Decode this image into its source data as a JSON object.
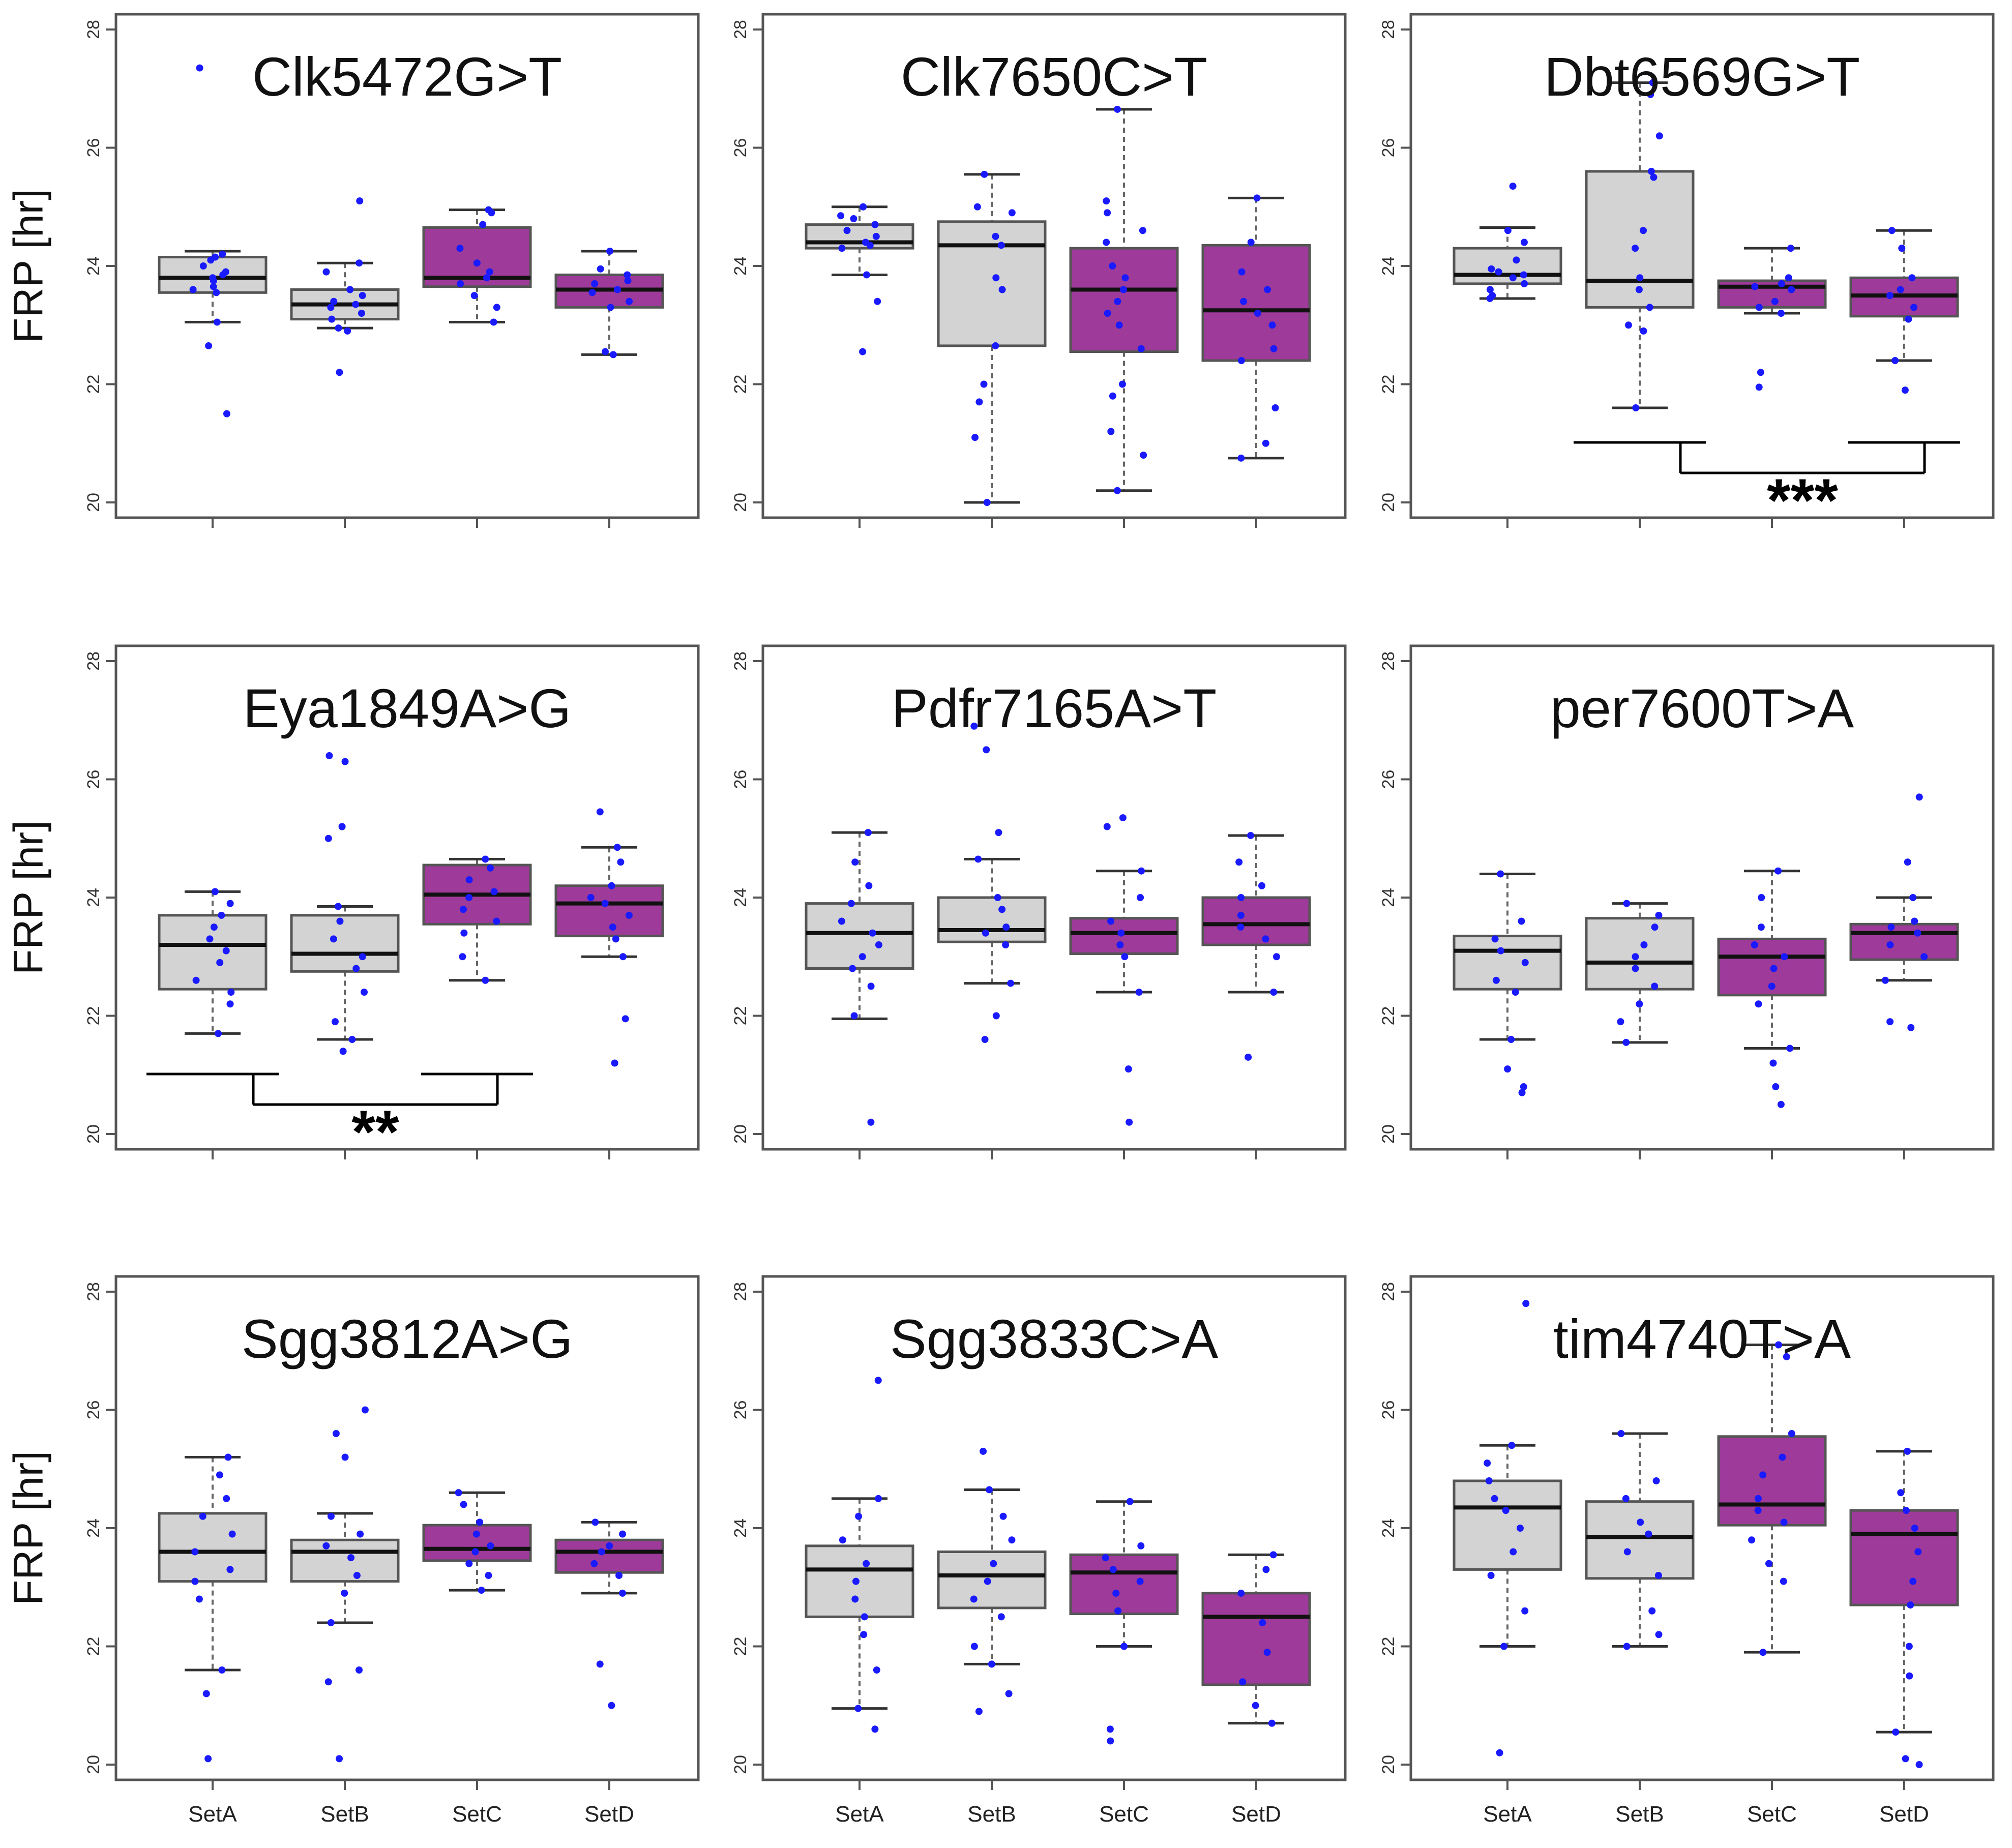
{
  "figure": {
    "y_axis_label": "FRP [hr]",
    "y_ticks": [
      "20",
      "22",
      "24",
      "26",
      "28"
    ],
    "x_categories": [
      "SetA",
      "SetB",
      "SetC",
      "SetD"
    ],
    "colors": {
      "control_box": "#d3d3d3",
      "treated_box": "#9e3a99",
      "points": "#1a1aff",
      "axis": "#555555",
      "median": "#111111"
    }
  },
  "chart_data": [
    {
      "type": "box",
      "title": "Clk5472G>T",
      "ylabel": "FRP [hr]",
      "ylim": [
        20,
        28
      ],
      "categories": [
        "SetA",
        "SetB",
        "SetC",
        "SetD"
      ],
      "boxes": [
        {
          "category": "SetA",
          "min": 23.05,
          "q1": 23.55,
          "median": 23.8,
          "q3": 24.15,
          "max": 24.25,
          "fill": "control",
          "points": [
            27.35,
            24.2,
            24.15,
            24.1,
            24.0,
            23.9,
            23.85,
            23.8,
            23.75,
            23.65,
            23.6,
            23.55,
            23.05,
            22.65,
            21.5
          ]
        },
        {
          "category": "SetB",
          "min": 22.95,
          "q1": 23.1,
          "median": 23.35,
          "q3": 23.6,
          "max": 24.05,
          "fill": "control",
          "points": [
            25.1,
            24.05,
            23.9,
            23.6,
            23.5,
            23.4,
            23.35,
            23.3,
            23.2,
            23.1,
            22.95,
            22.9,
            22.2
          ]
        },
        {
          "category": "SetC",
          "min": 23.05,
          "q1": 23.65,
          "median": 23.8,
          "q3": 24.65,
          "max": 24.95,
          "fill": "treated",
          "points": [
            24.95,
            24.9,
            24.7,
            24.3,
            24.05,
            23.9,
            23.8,
            23.7,
            23.5,
            23.3,
            23.05
          ]
        },
        {
          "category": "SetD",
          "min": 22.5,
          "q1": 23.3,
          "median": 23.6,
          "q3": 23.85,
          "max": 24.25,
          "fill": "treated",
          "points": [
            24.25,
            23.95,
            23.85,
            23.75,
            23.7,
            23.6,
            23.55,
            23.4,
            23.3,
            22.55,
            22.5
          ]
        }
      ],
      "significance": null
    },
    {
      "type": "box",
      "title": "Clk7650C>T",
      "ylabel": "FRP [hr]",
      "ylim": [
        20,
        28
      ],
      "categories": [
        "SetA",
        "SetB",
        "SetC",
        "SetD"
      ],
      "boxes": [
        {
          "category": "SetA",
          "min": 23.85,
          "q1": 24.3,
          "median": 24.4,
          "q3": 24.7,
          "max": 25.0,
          "fill": "control",
          "points": [
            25.0,
            24.85,
            24.8,
            24.7,
            24.6,
            24.5,
            24.4,
            24.35,
            24.3,
            23.85,
            23.4,
            22.55
          ]
        },
        {
          "category": "SetB",
          "min": 20.0,
          "q1": 22.65,
          "median": 24.35,
          "q3": 24.75,
          "max": 25.55,
          "fill": "control",
          "points": [
            25.55,
            25.0,
            24.9,
            24.5,
            24.35,
            23.8,
            23.6,
            22.65,
            22.0,
            21.7,
            21.1,
            20.0
          ]
        },
        {
          "category": "SetC",
          "min": 20.2,
          "q1": 22.55,
          "median": 23.6,
          "q3": 24.3,
          "max": 26.65,
          "fill": "treated",
          "points": [
            26.65,
            25.1,
            24.9,
            24.6,
            24.4,
            24.0,
            23.8,
            23.6,
            23.4,
            23.2,
            23.0,
            22.6,
            22.0,
            21.8,
            21.2,
            20.8,
            20.2
          ]
        },
        {
          "category": "SetD",
          "min": 20.75,
          "q1": 22.4,
          "median": 23.25,
          "q3": 24.35,
          "max": 25.15,
          "fill": "treated",
          "points": [
            25.15,
            24.4,
            23.9,
            23.6,
            23.4,
            23.2,
            23.0,
            22.6,
            22.4,
            21.6,
            21.0,
            20.75
          ]
        }
      ],
      "significance": null
    },
    {
      "type": "box",
      "title": "Dbt6569G>T",
      "ylabel": "FRP [hr]",
      "ylim": [
        20,
        28
      ],
      "categories": [
        "SetA",
        "SetB",
        "SetC",
        "SetD"
      ],
      "boxes": [
        {
          "category": "SetA",
          "min": 23.45,
          "q1": 23.7,
          "median": 23.85,
          "q3": 24.3,
          "max": 24.65,
          "fill": "control",
          "points": [
            25.35,
            24.6,
            24.4,
            24.1,
            23.95,
            23.9,
            23.85,
            23.8,
            23.7,
            23.6,
            23.5,
            23.45
          ]
        },
        {
          "category": "SetB",
          "min": 21.6,
          "q1": 23.3,
          "median": 23.75,
          "q3": 25.6,
          "max": 27.1,
          "fill": "control",
          "points": [
            27.1,
            26.9,
            26.2,
            25.6,
            25.5,
            24.6,
            24.3,
            23.8,
            23.6,
            23.3,
            23.0,
            22.9,
            21.6
          ]
        },
        {
          "category": "SetC",
          "min": 23.2,
          "q1": 23.3,
          "median": 23.65,
          "q3": 23.75,
          "max": 24.3,
          "fill": "treated",
          "points": [
            24.3,
            23.8,
            23.7,
            23.65,
            23.6,
            23.4,
            23.3,
            23.2,
            22.2,
            21.95
          ]
        },
        {
          "category": "SetD",
          "min": 22.4,
          "q1": 23.15,
          "median": 23.5,
          "q3": 23.8,
          "max": 24.6,
          "fill": "treated",
          "points": [
            24.6,
            24.3,
            23.8,
            23.6,
            23.5,
            23.3,
            23.1,
            22.4,
            21.9
          ]
        }
      ],
      "significance": {
        "left": "SetB",
        "right": "SetD",
        "label": "***"
      }
    },
    {
      "type": "box",
      "title": "Eya1849A>G",
      "ylabel": "FRP [hr]",
      "ylim": [
        20,
        28
      ],
      "categories": [
        "SetA",
        "SetB",
        "SetC",
        "SetD"
      ],
      "boxes": [
        {
          "category": "SetA",
          "min": 21.7,
          "q1": 22.45,
          "median": 23.2,
          "q3": 23.7,
          "max": 24.1,
          "fill": "control",
          "points": [
            24.1,
            23.9,
            23.7,
            23.5,
            23.3,
            23.1,
            22.9,
            22.6,
            22.4,
            22.2,
            21.7
          ]
        },
        {
          "category": "SetB",
          "min": 21.6,
          "q1": 22.75,
          "median": 23.05,
          "q3": 23.7,
          "max": 23.85,
          "fill": "control",
          "points": [
            26.4,
            26.3,
            25.2,
            25.0,
            23.85,
            23.6,
            23.3,
            23.0,
            22.8,
            22.4,
            21.9,
            21.6,
            21.4
          ]
        },
        {
          "category": "SetC",
          "min": 22.6,
          "q1": 23.55,
          "median": 24.05,
          "q3": 24.55,
          "max": 24.65,
          "fill": "treated",
          "points": [
            24.65,
            24.5,
            24.3,
            24.1,
            24.0,
            23.8,
            23.6,
            23.4,
            23.0,
            22.6
          ]
        },
        {
          "category": "SetD",
          "min": 23.0,
          "q1": 23.35,
          "median": 23.9,
          "q3": 24.2,
          "max": 24.85,
          "fill": "treated",
          "points": [
            25.45,
            24.85,
            24.6,
            24.2,
            24.0,
            23.9,
            23.7,
            23.5,
            23.3,
            23.0,
            21.95,
            21.2
          ]
        }
      ],
      "significance": {
        "left": "SetA",
        "right": "SetC",
        "label": "**"
      }
    },
    {
      "type": "box",
      "title": "Pdfr7165A>T",
      "ylabel": "FRP [hr]",
      "ylim": [
        20,
        28
      ],
      "categories": [
        "SetA",
        "SetB",
        "SetC",
        "SetD"
      ],
      "boxes": [
        {
          "category": "SetA",
          "min": 21.95,
          "q1": 22.8,
          "median": 23.4,
          "q3": 23.9,
          "max": 25.1,
          "fill": "control",
          "points": [
            25.1,
            24.6,
            24.2,
            23.9,
            23.6,
            23.4,
            23.2,
            23.0,
            22.8,
            22.5,
            22.0,
            20.2
          ]
        },
        {
          "category": "SetB",
          "min": 22.55,
          "q1": 23.25,
          "median": 23.45,
          "q3": 24.0,
          "max": 24.65,
          "fill": "control",
          "points": [
            26.9,
            26.5,
            25.1,
            24.65,
            24.0,
            23.8,
            23.5,
            23.4,
            23.2,
            22.55,
            22.0,
            21.6
          ]
        },
        {
          "category": "SetC",
          "min": 22.4,
          "q1": 23.05,
          "median": 23.4,
          "q3": 23.65,
          "max": 24.45,
          "fill": "treated",
          "points": [
            25.35,
            25.2,
            24.45,
            24.0,
            23.6,
            23.4,
            23.2,
            23.0,
            22.4,
            21.1,
            20.2
          ]
        },
        {
          "category": "SetD",
          "min": 22.4,
          "q1": 23.2,
          "median": 23.55,
          "q3": 24.0,
          "max": 25.05,
          "fill": "treated",
          "points": [
            25.05,
            24.6,
            24.2,
            24.0,
            23.7,
            23.5,
            23.3,
            23.0,
            22.4,
            21.3
          ]
        }
      ],
      "significance": null
    },
    {
      "type": "box",
      "title": "per7600T>A",
      "ylabel": "FRP [hr]",
      "ylim": [
        20,
        28
      ],
      "categories": [
        "SetA",
        "SetB",
        "SetC",
        "SetD"
      ],
      "boxes": [
        {
          "category": "SetA",
          "min": 21.6,
          "q1": 22.45,
          "median": 23.1,
          "q3": 23.35,
          "max": 24.4,
          "fill": "control",
          "points": [
            24.4,
            23.6,
            23.3,
            23.1,
            22.9,
            22.6,
            22.4,
            21.6,
            21.1,
            20.8,
            20.7
          ]
        },
        {
          "category": "SetB",
          "min": 21.55,
          "q1": 22.45,
          "median": 22.9,
          "q3": 23.65,
          "max": 23.9,
          "fill": "control",
          "points": [
            23.9,
            23.7,
            23.5,
            23.2,
            23.0,
            22.8,
            22.5,
            22.2,
            21.9,
            21.55
          ]
        },
        {
          "category": "SetC",
          "min": 21.45,
          "q1": 22.35,
          "median": 23.0,
          "q3": 23.3,
          "max": 24.45,
          "fill": "treated",
          "points": [
            24.45,
            24.0,
            23.5,
            23.2,
            23.0,
            22.8,
            22.5,
            22.2,
            21.45,
            21.2,
            20.8,
            20.5
          ]
        },
        {
          "category": "SetD",
          "min": 22.6,
          "q1": 22.95,
          "median": 23.4,
          "q3": 23.55,
          "max": 24.0,
          "fill": "treated",
          "points": [
            25.7,
            24.6,
            24.0,
            23.6,
            23.5,
            23.4,
            23.2,
            23.0,
            22.6,
            21.9,
            21.8
          ]
        }
      ],
      "significance": null
    },
    {
      "type": "box",
      "title": "Sgg3812A>G",
      "ylabel": "FRP [hr]",
      "ylim": [
        20,
        28
      ],
      "categories": [
        "SetA",
        "SetB",
        "SetC",
        "SetD"
      ],
      "boxes": [
        {
          "category": "SetA",
          "min": 21.6,
          "q1": 23.1,
          "median": 23.6,
          "q3": 24.25,
          "max": 25.2,
          "fill": "control",
          "points": [
            25.2,
            24.9,
            24.5,
            24.2,
            23.9,
            23.6,
            23.3,
            23.1,
            22.8,
            21.6,
            21.2,
            20.1
          ]
        },
        {
          "category": "SetB",
          "min": 22.4,
          "q1": 23.1,
          "median": 23.6,
          "q3": 23.8,
          "max": 24.25,
          "fill": "control",
          "points": [
            26.0,
            25.6,
            25.2,
            24.2,
            23.9,
            23.7,
            23.5,
            23.2,
            22.9,
            22.4,
            21.6,
            21.4,
            20.1
          ]
        },
        {
          "category": "SetC",
          "min": 22.95,
          "q1": 23.45,
          "median": 23.65,
          "q3": 24.05,
          "max": 24.6,
          "fill": "treated",
          "points": [
            24.6,
            24.4,
            24.1,
            23.9,
            23.7,
            23.6,
            23.4,
            23.2,
            22.95
          ]
        },
        {
          "category": "SetD",
          "min": 22.9,
          "q1": 23.25,
          "median": 23.6,
          "q3": 23.8,
          "max": 24.1,
          "fill": "treated",
          "points": [
            24.1,
            23.9,
            23.7,
            23.6,
            23.4,
            23.2,
            22.9,
            21.7,
            21.0
          ]
        }
      ],
      "significance": null
    },
    {
      "type": "box",
      "title": "Sgg3833C>A",
      "ylabel": "FRP [hr]",
      "ylim": [
        20,
        28
      ],
      "categories": [
        "SetA",
        "SetB",
        "SetC",
        "SetD"
      ],
      "boxes": [
        {
          "category": "SetA",
          "min": 20.95,
          "q1": 22.5,
          "median": 23.3,
          "q3": 23.7,
          "max": 24.5,
          "fill": "control",
          "points": [
            26.5,
            24.5,
            24.2,
            23.8,
            23.4,
            23.1,
            22.8,
            22.5,
            22.2,
            21.6,
            20.95,
            20.6
          ]
        },
        {
          "category": "SetB",
          "min": 21.7,
          "q1": 22.65,
          "median": 23.2,
          "q3": 23.6,
          "max": 24.65,
          "fill": "control",
          "points": [
            25.3,
            24.65,
            24.2,
            23.8,
            23.4,
            23.1,
            22.8,
            22.5,
            22.0,
            21.7,
            21.2,
            20.9
          ]
        },
        {
          "category": "SetC",
          "min": 22.0,
          "q1": 22.55,
          "median": 23.25,
          "q3": 23.55,
          "max": 24.45,
          "fill": "treated",
          "points": [
            24.45,
            23.7,
            23.5,
            23.3,
            23.1,
            22.9,
            22.6,
            22.0,
            20.6,
            20.4
          ]
        },
        {
          "category": "SetD",
          "min": 20.7,
          "q1": 21.35,
          "median": 22.5,
          "q3": 22.9,
          "max": 23.55,
          "fill": "treated",
          "points": [
            23.55,
            23.3,
            22.9,
            22.4,
            21.9,
            21.4,
            21.0,
            20.7
          ]
        }
      ],
      "significance": null
    },
    {
      "type": "box",
      "title": "tim4740T>A",
      "ylabel": "FRP [hr]",
      "ylim": [
        20,
        28
      ],
      "categories": [
        "SetA",
        "SetB",
        "SetC",
        "SetD"
      ],
      "boxes": [
        {
          "category": "SetA",
          "min": 22.0,
          "q1": 23.3,
          "median": 24.35,
          "q3": 24.8,
          "max": 25.4,
          "fill": "control",
          "points": [
            27.8,
            25.4,
            25.1,
            24.8,
            24.5,
            24.3,
            24.0,
            23.6,
            23.2,
            22.6,
            22.0,
            20.2
          ]
        },
        {
          "category": "SetB",
          "min": 22.0,
          "q1": 23.15,
          "median": 23.85,
          "q3": 24.45,
          "max": 25.6,
          "fill": "control",
          "points": [
            25.6,
            24.8,
            24.5,
            24.1,
            23.9,
            23.6,
            23.2,
            22.6,
            22.2,
            22.0
          ]
        },
        {
          "category": "SetC",
          "min": 21.9,
          "q1": 24.05,
          "median": 24.4,
          "q3": 25.55,
          "max": 27.1,
          "fill": "treated",
          "points": [
            27.1,
            26.9,
            25.6,
            25.2,
            24.9,
            24.5,
            24.3,
            24.1,
            23.8,
            23.4,
            23.1,
            21.9
          ]
        },
        {
          "category": "SetD",
          "min": 20.55,
          "q1": 22.7,
          "median": 23.9,
          "q3": 24.3,
          "max": 25.3,
          "fill": "treated",
          "points": [
            25.3,
            24.6,
            24.3,
            24.0,
            23.6,
            23.1,
            22.7,
            22.0,
            21.5,
            20.55,
            20.1,
            20.0
          ]
        }
      ],
      "significance": null
    }
  ]
}
